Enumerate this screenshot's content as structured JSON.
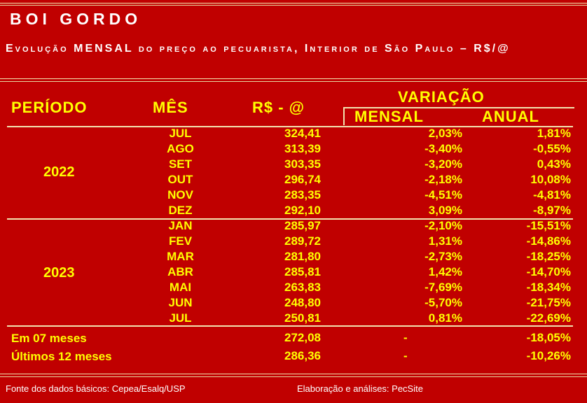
{
  "title": "BOI GORDO",
  "subtitle": "Evolução MENSAL do preço ao pecuarista, Interior de São Paulo – R$/@",
  "headers": {
    "periodo": "PERÍODO",
    "mes": "MÊS",
    "preco": "R$ - @",
    "variacao": "VARIAÇÃO",
    "mensal": "MENSAL",
    "anual": "ANUAL"
  },
  "groups": [
    {
      "year": "2022",
      "rows": [
        {
          "mes": "JUL",
          "preco": "324,41",
          "mensal": "2,03%",
          "anual": "1,81%"
        },
        {
          "mes": "AGO",
          "preco": "313,39",
          "mensal": "-3,40%",
          "anual": "-0,55%"
        },
        {
          "mes": "SET",
          "preco": "303,35",
          "mensal": "-3,20%",
          "anual": "0,43%"
        },
        {
          "mes": "OUT",
          "preco": "296,74",
          "mensal": "-2,18%",
          "anual": "10,08%"
        },
        {
          "mes": "NOV",
          "preco": "283,35",
          "mensal": "-4,51%",
          "anual": "-4,81%"
        },
        {
          "mes": "DEZ",
          "preco": "292,10",
          "mensal": "3,09%",
          "anual": "-8,97%"
        }
      ]
    },
    {
      "year": "2023",
      "rows": [
        {
          "mes": "JAN",
          "preco": "285,97",
          "mensal": "-2,10%",
          "anual": "-15,51%"
        },
        {
          "mes": "FEV",
          "preco": "289,72",
          "mensal": "1,31%",
          "anual": "-14,86%"
        },
        {
          "mes": "MAR",
          "preco": "281,80",
          "mensal": "-2,73%",
          "anual": "-18,25%"
        },
        {
          "mes": "ABR",
          "preco": "285,81",
          "mensal": "1,42%",
          "anual": "-14,70%"
        },
        {
          "mes": "MAI",
          "preco": "263,83",
          "mensal": "-7,69%",
          "anual": "-18,34%"
        },
        {
          "mes": "JUN",
          "preco": "248,80",
          "mensal": "-5,70%",
          "anual": "-21,75%"
        },
        {
          "mes": "JUL",
          "preco": "250,81",
          "mensal": "0,81%",
          "anual": "-22,69%"
        }
      ]
    }
  ],
  "summary": [
    {
      "label": "Em 07 meses",
      "preco": "272,08",
      "mensal": "-",
      "anual": "-18,05%"
    },
    {
      "label": "Últimos 12 meses",
      "preco": "286,36",
      "mensal": "-",
      "anual": "-10,26%"
    }
  ],
  "footer": {
    "fonte": "Fonte dos dados básicos: Cepea/Esalq/USP",
    "elaboracao": "Elaboração e análises: PecSite"
  },
  "colors": {
    "background": "#c00000",
    "text_yellow": "#ffff00",
    "text_white": "#ffffff",
    "lines": "#f2e3b0"
  }
}
